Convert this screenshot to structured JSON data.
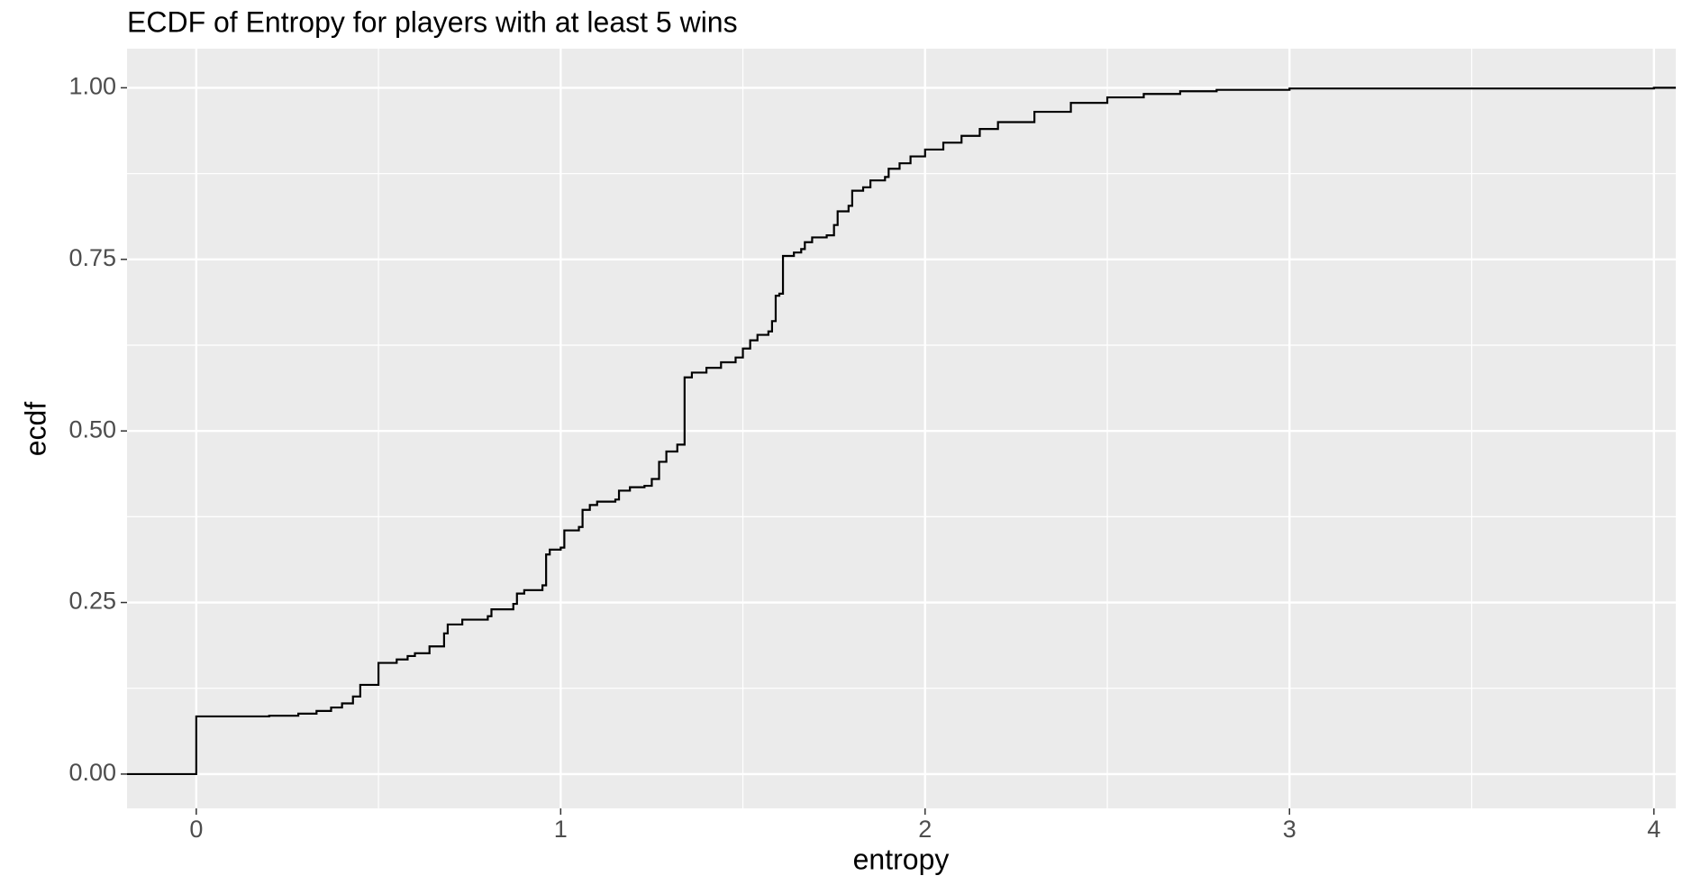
{
  "chart_data": {
    "type": "step",
    "title": "ECDF of Entropy for players with at least 5 wins",
    "x_label": "entropy",
    "y_label": "ecdf",
    "color": "#000000",
    "grid": true,
    "xlim": [
      -0.19,
      4.06
    ],
    "ylim": [
      -0.05,
      1.057
    ],
    "xticks": [
      0,
      1,
      2,
      3,
      4
    ],
    "yticks": [
      {
        "value": 0,
        "label": "0.00"
      },
      {
        "value": 0.25,
        "label": "0.25"
      },
      {
        "value": 0.5,
        "label": "0.50"
      },
      {
        "value": 0.75,
        "label": "0.75"
      },
      {
        "value": 1,
        "label": "1.00"
      }
    ],
    "x": [
      0,
      0.2,
      0.28,
      0.33,
      0.37,
      0.4,
      0.43,
      0.45,
      0.5,
      0.55,
      0.58,
      0.6,
      0.64,
      0.68,
      0.69,
      0.73,
      0.8,
      0.81,
      0.87,
      0.88,
      0.9,
      0.95,
      0.96,
      0.97,
      1.0,
      1.01,
      1.05,
      1.06,
      1.08,
      1.1,
      1.15,
      1.16,
      1.19,
      1.23,
      1.25,
      1.27,
      1.29,
      1.32,
      1.34,
      1.36,
      1.4,
      1.44,
      1.48,
      1.5,
      1.52,
      1.54,
      1.57,
      1.58,
      1.59,
      1.6,
      1.61,
      1.64,
      1.66,
      1.67,
      1.69,
      1.73,
      1.75,
      1.76,
      1.79,
      1.8,
      1.83,
      1.85,
      1.89,
      1.9,
      1.93,
      1.96,
      2.0,
      2.05,
      2.1,
      2.15,
      2.2,
      2.3,
      2.4,
      2.5,
      2.6,
      2.7,
      2.8,
      3.0,
      4.0
    ],
    "values": [
      0.084,
      0.085,
      0.088,
      0.092,
      0.097,
      0.103,
      0.113,
      0.13,
      0.162,
      0.167,
      0.172,
      0.176,
      0.186,
      0.205,
      0.218,
      0.225,
      0.23,
      0.24,
      0.248,
      0.263,
      0.268,
      0.275,
      0.32,
      0.327,
      0.33,
      0.355,
      0.36,
      0.385,
      0.392,
      0.397,
      0.4,
      0.413,
      0.418,
      0.42,
      0.43,
      0.455,
      0.47,
      0.48,
      0.578,
      0.585,
      0.592,
      0.6,
      0.607,
      0.62,
      0.632,
      0.64,
      0.645,
      0.66,
      0.697,
      0.7,
      0.755,
      0.76,
      0.765,
      0.775,
      0.782,
      0.785,
      0.8,
      0.82,
      0.828,
      0.85,
      0.855,
      0.865,
      0.87,
      0.882,
      0.89,
      0.9,
      0.91,
      0.92,
      0.93,
      0.94,
      0.95,
      0.965,
      0.978,
      0.986,
      0.991,
      0.995,
      0.997,
      0.999,
      1.0
    ]
  }
}
